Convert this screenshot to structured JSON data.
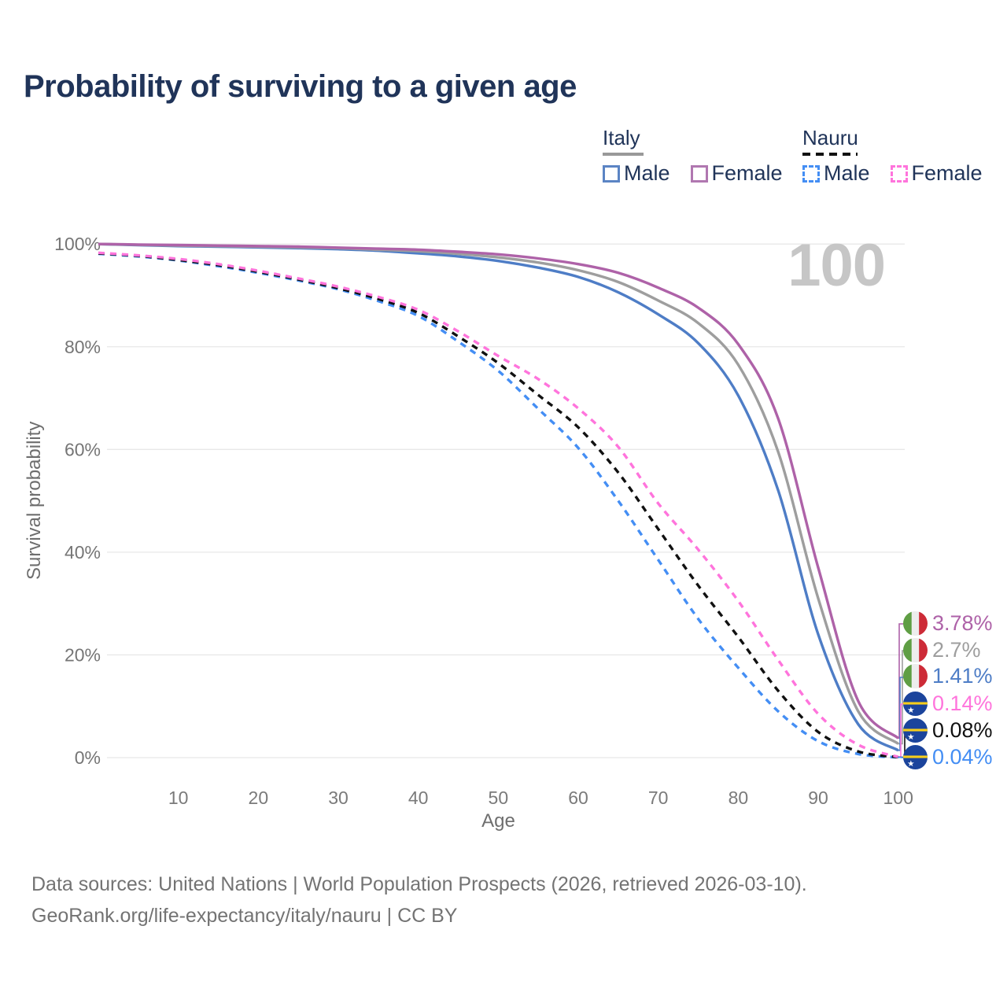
{
  "title": "Probability of surviving to a given age",
  "watermark": "100",
  "legend": {
    "groups": [
      {
        "label": "Italy",
        "line_style": "solid",
        "underline_color": "#999999",
        "items": [
          {
            "label": "Male",
            "color": "#5b84c4"
          },
          {
            "label": "Female",
            "color": "#b077b0"
          }
        ]
      },
      {
        "label": "Nauru",
        "line_style": "dashed",
        "underline_color": "#111111",
        "items": [
          {
            "label": "Male",
            "color": "#448ef4"
          },
          {
            "label": "Female",
            "color": "#ff74dc"
          }
        ]
      }
    ]
  },
  "chart_data": {
    "type": "line",
    "title": "Probability of surviving to a given age",
    "xlabel": "Age",
    "ylabel": "Survival probability",
    "x_ticks": [
      10,
      20,
      30,
      40,
      50,
      60,
      70,
      80,
      90,
      100
    ],
    "y_ticks": [
      "0%",
      "20%",
      "40%",
      "60%",
      "80%",
      "100%"
    ],
    "xlim": [
      0,
      100
    ],
    "ylim": [
      0,
      100
    ],
    "grid": "horizontal",
    "legend_position": "top-right",
    "x": [
      0,
      5,
      10,
      15,
      20,
      25,
      30,
      35,
      40,
      45,
      50,
      55,
      60,
      65,
      70,
      75,
      80,
      85,
      90,
      95,
      100
    ],
    "series": [
      {
        "name": "Italy Female",
        "country": "Italy",
        "sex": "Female",
        "color": "#ae62a8",
        "dashed": false,
        "end_label": "3.78%",
        "values": [
          100,
          99.9,
          99.8,
          99.7,
          99.6,
          99.5,
          99.3,
          99.1,
          98.9,
          98.5,
          98.0,
          97.2,
          96.1,
          94.4,
          91.5,
          87.6,
          80.5,
          66,
          37,
          11,
          3.78
        ]
      },
      {
        "name": "Italy Both sexes",
        "country": "Italy",
        "sex": "Both",
        "color": "#9e9e9e",
        "dashed": false,
        "end_label": "2.7%",
        "values": [
          100,
          99.85,
          99.7,
          99.6,
          99.5,
          99.35,
          99.2,
          98.9,
          98.6,
          98.1,
          97.4,
          96.4,
          94.9,
          92.6,
          89.0,
          84.6,
          76.5,
          59.5,
          31,
          9,
          2.7
        ]
      },
      {
        "name": "Italy Male",
        "country": "Italy",
        "sex": "Male",
        "color": "#4e7dc6",
        "dashed": false,
        "end_label": "1.41%",
        "values": [
          100,
          99.8,
          99.6,
          99.5,
          99.35,
          99.2,
          99.0,
          98.7,
          98.2,
          97.6,
          96.7,
          95.4,
          93.6,
          90.6,
          86.3,
          80.7,
          70.5,
          52,
          24,
          6.5,
          1.41
        ]
      },
      {
        "name": "Nauru Female",
        "country": "Nauru",
        "sex": "Female",
        "color": "#ff74dc",
        "dashed": true,
        "end_label": "0.14%",
        "values": [
          98.3,
          97.8,
          97.1,
          96.1,
          94.8,
          93.3,
          91.7,
          89.7,
          87.2,
          83.0,
          78.2,
          73.7,
          68.0,
          60.5,
          49.5,
          40.5,
          30.5,
          19,
          8.5,
          2.5,
          0.14
        ]
      },
      {
        "name": "Nauru Both sexes",
        "country": "Nauru",
        "sex": "Both",
        "color": "#111111",
        "dashed": true,
        "end_label": "0.08%",
        "values": [
          98.2,
          97.7,
          96.9,
          95.9,
          94.6,
          93.1,
          91.4,
          89.3,
          86.6,
          82.0,
          76.8,
          70.6,
          64.3,
          55.5,
          44.5,
          33.5,
          23.5,
          13,
          5,
          1.2,
          0.08
        ]
      },
      {
        "name": "Nauru Male",
        "country": "Nauru",
        "sex": "Male",
        "color": "#448ef4",
        "dashed": true,
        "end_label": "0.04%",
        "values": [
          98.1,
          97.6,
          96.8,
          95.7,
          94.4,
          92.9,
          91.2,
          88.9,
          86.0,
          81.0,
          75.3,
          67.9,
          60.3,
          50.0,
          38.5,
          27.0,
          17.5,
          9,
          3.2,
          0.7,
          0.04
        ]
      }
    ]
  },
  "footer": {
    "line1": "Data sources: United Nations | World Population Prospects (2026, retrieved 2026-03-10).",
    "line2": "GeoRank.org/life-expectancy/italy/nauru | CC BY"
  }
}
